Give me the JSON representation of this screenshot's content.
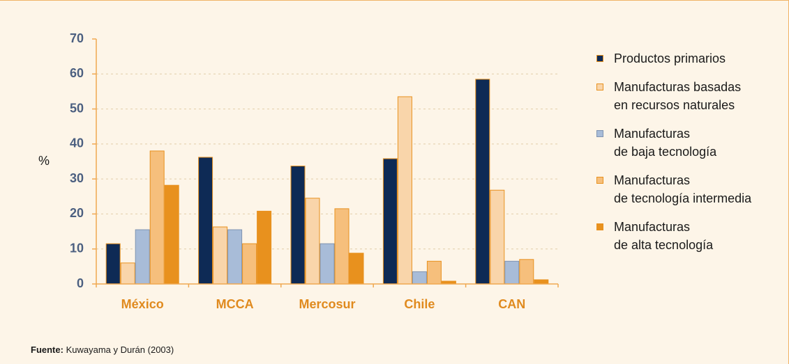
{
  "chart_data": {
    "type": "bar",
    "y_label": "%",
    "categories": [
      "México",
      "MCCA",
      "Mercosur",
      "Chile",
      "CAN"
    ],
    "series": [
      {
        "name": "Productos primarios",
        "color": "#0e2a55",
        "values": [
          11.5,
          36.2,
          33.7,
          35.8,
          58.5
        ]
      },
      {
        "name": "Manufacturas basadas\nen recursos naturales",
        "color": "#f9d5aa",
        "values": [
          6,
          16.3,
          24.5,
          53.5,
          26.8
        ]
      },
      {
        "name": "Manufacturas\nde baja tecnología",
        "color": "#a8bcd8",
        "values": [
          15.5,
          15.5,
          11.5,
          3.5,
          6.5
        ]
      },
      {
        "name": "Manufacturas\nde tecnología intermedia",
        "color": "#f6bf7c",
        "values": [
          38,
          11.5,
          21.5,
          6.5,
          7
        ]
      },
      {
        "name": "Manufacturas\nde alta tecnología",
        "color": "#e8911e",
        "values": [
          28.2,
          20.8,
          8.8,
          0.8,
          1.2
        ]
      }
    ],
    "ylim": [
      0,
      70
    ],
    "yticks": [
      0,
      10,
      20,
      30,
      40,
      50,
      60,
      70
    ],
    "grid": true,
    "legend": "right",
    "source_label": "Fuente:",
    "source_text": "Kuwayama y Durán (2003)"
  }
}
